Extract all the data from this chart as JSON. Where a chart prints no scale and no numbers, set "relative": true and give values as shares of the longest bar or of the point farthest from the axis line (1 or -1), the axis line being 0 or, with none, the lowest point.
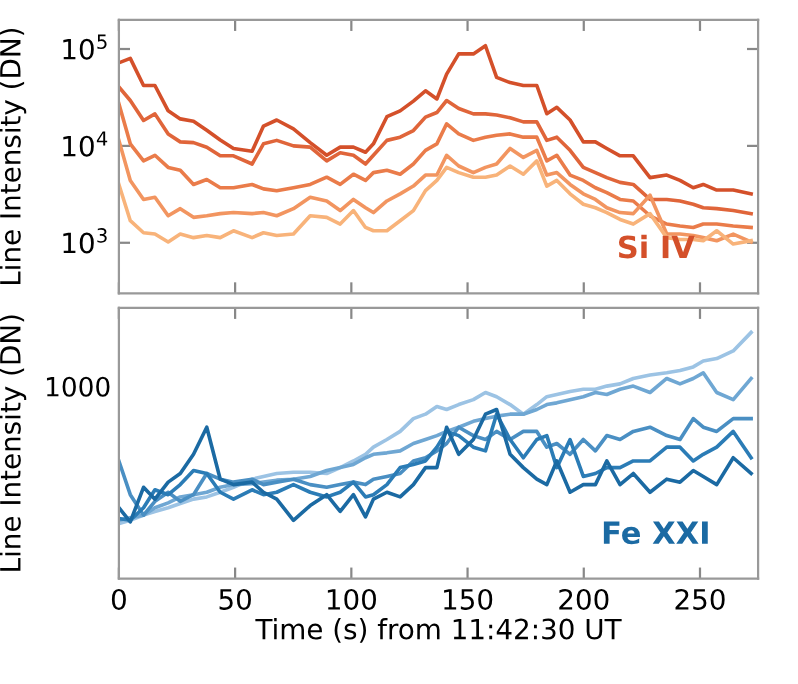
{
  "chart_data": [
    {
      "type": "line",
      "ylabel": "Line Intensity (DN)",
      "log": "y",
      "grid": false,
      "marker": "none",
      "line_style": "solid",
      "tick_labels": "y",
      "xlim": [
        0,
        275
      ],
      "xticks": [
        {
          "value": 0,
          "label": null
        },
        {
          "value": 50,
          "label": null
        },
        {
          "value": 100,
          "label": null
        },
        {
          "value": 150,
          "label": null
        },
        {
          "value": 200,
          "label": null
        },
        {
          "value": 250,
          "label": null
        }
      ],
      "ylim": [
        300,
        200000
      ],
      "yticks": [
        {
          "value": 1000,
          "label": "10$^{3}$"
        },
        {
          "value": 10000,
          "label": "10$^{4}$"
        },
        {
          "value": 100000,
          "label": "10$^{5}$"
        }
      ],
      "annotations": [
        "Si IV"
      ],
      "x": [
        0,
        4.9,
        10.6,
        15.5,
        21.2,
        26.4,
        32.1,
        37.8,
        43.6,
        49.3,
        57.3,
        62.2,
        67.9,
        75.1,
        82.3,
        89.4,
        95.2,
        100.9,
        106.1,
        109.5,
        115.3,
        121,
        126.7,
        131.9,
        136.8,
        141,
        146.2,
        152.5,
        157.7,
        162.5,
        168.3,
        174,
        179.8,
        184.1,
        188.4,
        194.1,
        199.8,
        205,
        209.9,
        215.6,
        221.3,
        228.5,
        235.7,
        241.4,
        247.1,
        251.4,
        257.2,
        264.3,
        272
      ],
      "series": [
        {
          "color": "#d4502a",
          "values": [
            72000,
            80000,
            42000,
            42000,
            23000,
            19000,
            18000,
            14500,
            11500,
            9400,
            8800,
            16000,
            18500,
            15000,
            10800,
            8000,
            9700,
            9700,
            8600,
            10500,
            20000,
            23000,
            29000,
            37000,
            30500,
            55000,
            89000,
            89000,
            108000,
            51000,
            45000,
            42000,
            42000,
            21500,
            25000,
            18500,
            11000,
            11000,
            9400,
            7900,
            7900,
            4700,
            5000,
            4400,
            3700,
            4000,
            3500,
            3500,
            3200
          ]
        },
        {
          "color": "#e0653a",
          "values": [
            40500,
            29400,
            18300,
            21400,
            13300,
            11000,
            10800,
            9700,
            7900,
            7900,
            6500,
            10500,
            11400,
            10000,
            9700,
            7000,
            8500,
            8000,
            6500,
            8000,
            11400,
            12300,
            14400,
            19800,
            22100,
            29400,
            24300,
            21400,
            21400,
            20800,
            19500,
            17700,
            17700,
            11400,
            12300,
            9000,
            6000,
            5300,
            4700,
            4200,
            4000,
            2800,
            2800,
            2700,
            2500,
            2300,
            2250,
            2150,
            2000
          ]
        },
        {
          "color": "#ea7c4a",
          "values": [
            27200,
            10500,
            7000,
            8000,
            6000,
            5600,
            4000,
            4500,
            3700,
            3700,
            4000,
            3600,
            3450,
            3700,
            4000,
            4750,
            4000,
            5100,
            4400,
            5300,
            5600,
            5100,
            6500,
            9000,
            10500,
            16900,
            13300,
            11400,
            12300,
            12900,
            13300,
            12300,
            12300,
            7000,
            8000,
            5000,
            4400,
            3700,
            3300,
            2800,
            2700,
            1900,
            1560,
            1490,
            1440,
            1560,
            1560,
            1490,
            1440
          ]
        },
        {
          "color": "#f29560",
          "values": [
            11400,
            4400,
            2800,
            2950,
            1900,
            2250,
            1830,
            1900,
            2000,
            2050,
            2000,
            2050,
            1900,
            2250,
            2950,
            2700,
            2150,
            2800,
            2300,
            2050,
            2700,
            3200,
            3850,
            5000,
            5000,
            8000,
            6200,
            5300,
            6000,
            6500,
            9400,
            7600,
            9000,
            5000,
            5300,
            4000,
            3200,
            2800,
            2300,
            2050,
            2000,
            3100,
            1230,
            1230,
            1190,
            1130,
            1050,
            1230,
            1020
          ]
        },
        {
          "color": "#f8b37a",
          "values": [
            4000,
            1690,
            1270,
            1230,
            1020,
            1230,
            1130,
            1190,
            1130,
            1330,
            1130,
            1270,
            1190,
            1230,
            1900,
            1830,
            1560,
            2150,
            1440,
            1330,
            1330,
            1690,
            2150,
            3450,
            4400,
            6000,
            5300,
            4750,
            4750,
            5000,
            6200,
            5100,
            7000,
            3850,
            4400,
            3200,
            2500,
            2300,
            2050,
            1740,
            1560,
            2000,
            1130,
            1080,
            1080,
            1050,
            1330,
            970,
            1050
          ]
        }
      ]
    },
    {
      "type": "line",
      "xlabel": "Time (s) from 11:42:30 UT",
      "ylabel": "Line Intensity (DN)",
      "grid": false,
      "marker": "none",
      "line_style": "solid",
      "xlim": [
        0,
        275
      ],
      "xticks": [
        0,
        50,
        100,
        150,
        200,
        250
      ],
      "relative": true,
      "annotations": [
        "1000",
        "Fe XXI"
      ],
      "x": [
        0,
        4.9,
        10.6,
        15.5,
        21.2,
        26.4,
        32.1,
        37.8,
        43.6,
        49.3,
        57.3,
        62.2,
        67.9,
        75.1,
        82.3,
        89.4,
        95.2,
        100.9,
        106.1,
        109.5,
        115.3,
        121,
        126.7,
        131.9,
        136.8,
        141,
        146.2,
        152.5,
        157.7,
        162.5,
        168.3,
        174,
        179.8,
        184.1,
        188.4,
        194.1,
        199.8,
        205,
        209.9,
        215.6,
        221.3,
        228.5,
        235.7,
        241.4,
        247.1,
        251.4,
        257.2,
        264.3,
        272
      ],
      "series": [
        {
          "color": "#9cc3e4",
          "values": [
            0.224,
            0.237,
            0.258,
            0.273,
            0.288,
            0.305,
            0.323,
            0.332,
            0.351,
            0.371,
            0.404,
            0.415,
            0.427,
            0.432,
            0.432,
            0.427,
            0.451,
            0.478,
            0.505,
            0.534,
            0.565,
            0.598,
            0.65,
            0.668,
            0.699,
            0.687,
            0.707,
            0.727,
            0.756,
            0.739,
            0.707,
            0.668,
            0.707,
            0.739,
            0.748,
            0.76,
            0.769,
            0.769,
            0.782,
            0.791,
            0.813,
            0.827,
            0.836,
            0.845,
            0.86,
            0.884,
            0.894,
            0.925,
            1
          ]
        },
        {
          "color": "#6fa7d3",
          "values": [
            0.237,
            0.247,
            0.258,
            0.288,
            0.308,
            0.332,
            0.341,
            0.351,
            0.371,
            0.382,
            0.386,
            0.392,
            0.4,
            0.404,
            0.415,
            0.439,
            0.451,
            0.464,
            0.491,
            0.505,
            0.511,
            0.519,
            0.549,
            0.565,
            0.581,
            0.598,
            0.615,
            0.639,
            0.65,
            0.66,
            0.668,
            0.668,
            0.687,
            0.707,
            0.714,
            0.727,
            0.739,
            0.756,
            0.748,
            0.769,
            0.782,
            0.756,
            0.813,
            0.791,
            0.813,
            0.836,
            0.756,
            0.727,
            0.813
          ]
        },
        {
          "color": "#4a8fc3",
          "values": [
            0.478,
            0.341,
            0.258,
            0.314,
            0.351,
            0.314,
            0.341,
            0.427,
            0.404,
            0.392,
            0.404,
            0.382,
            0.392,
            0.404,
            0.382,
            0.371,
            0.382,
            0.392,
            0.382,
            0.404,
            0.415,
            0.427,
            0.478,
            0.491,
            0.519,
            0.549,
            0.615,
            0.581,
            0.565,
            0.598,
            0.565,
            0.598,
            0.598,
            0.534,
            0.549,
            0.505,
            0.565,
            0.519,
            0.581,
            0.565,
            0.598,
            0.615,
            0.581,
            0.565,
            0.65,
            0.615,
            0.598,
            0.65,
            0.65
          ]
        },
        {
          "color": "#2b7cb6",
          "values": [
            0.244,
            0.237,
            0.288,
            0.361,
            0.341,
            0.382,
            0.439,
            0.427,
            0.351,
            0.323,
            0.361,
            0.341,
            0.351,
            0.382,
            0.351,
            0.332,
            0.351,
            0.392,
            0.332,
            0.341,
            0.382,
            0.451,
            0.464,
            0.478,
            0.534,
            0.598,
            0.581,
            0.534,
            0.519,
            0.668,
            0.565,
            0.491,
            0.565,
            0.581,
            0.451,
            0.565,
            0.415,
            0.427,
            0.451,
            0.451,
            0.478,
            0.478,
            0.534,
            0.534,
            0.478,
            0.505,
            0.534,
            0.598,
            0.491
          ]
        },
        {
          "color": "#1b6aa3",
          "values": [
            0.288,
            0.231,
            0.371,
            0.323,
            0.392,
            0.427,
            0.505,
            0.615,
            0.404,
            0.382,
            0.392,
            0.351,
            0.323,
            0.237,
            0.297,
            0.341,
            0.273,
            0.341,
            0.251,
            0.323,
            0.351,
            0.332,
            0.382,
            0.451,
            0.451,
            0.615,
            0.505,
            0.565,
            0.668,
            0.687,
            0.505,
            0.451,
            0.404,
            0.382,
            0.478,
            0.351,
            0.382,
            0.382,
            0.478,
            0.382,
            0.427,
            0.351,
            0.404,
            0.392,
            0.439,
            0.415,
            0.382,
            0.491,
            0.427
          ]
        }
      ]
    }
  ]
}
